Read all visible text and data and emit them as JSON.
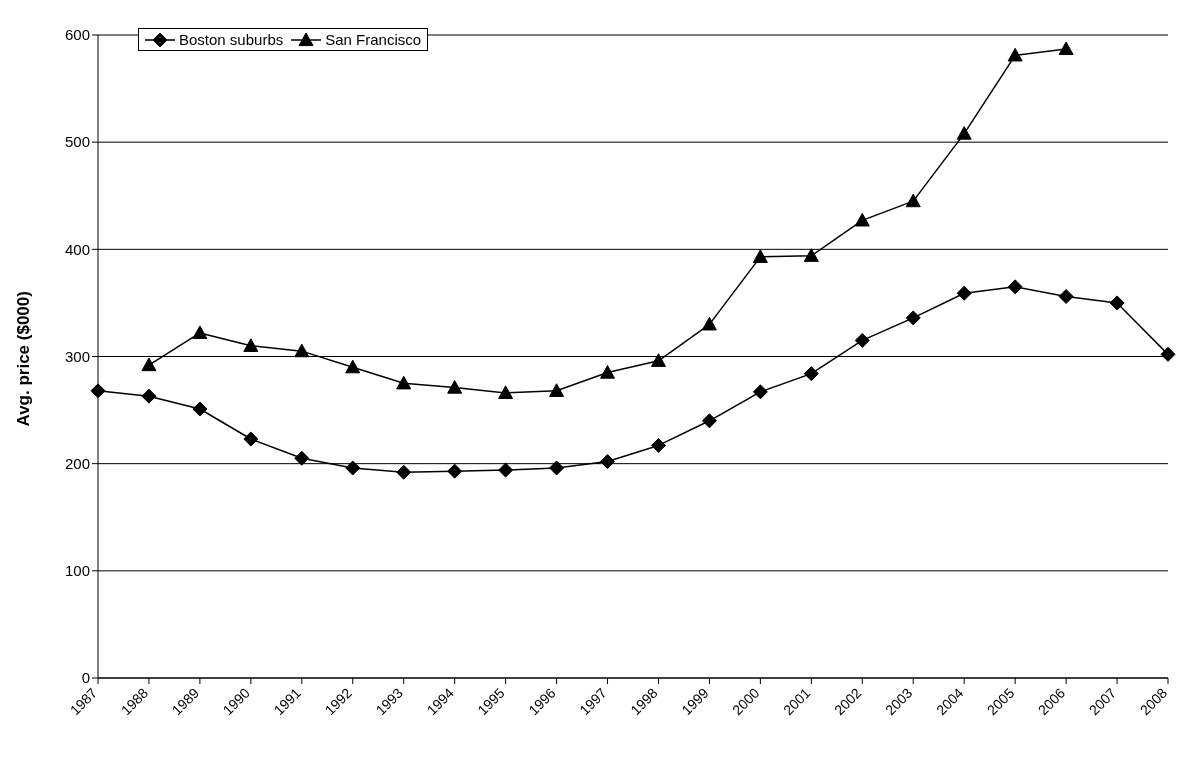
{
  "chart_data": {
    "type": "line",
    "ylabel": "Avg. price ($000)",
    "categories": [
      "1987",
      "1988",
      "1989",
      "1990",
      "1991",
      "1992",
      "1993",
      "1994",
      "1995",
      "1996",
      "1997",
      "1998",
      "1999",
      "2000",
      "2001",
      "2002",
      "2003",
      "2004",
      "2005",
      "2006",
      "2007",
      "2008"
    ],
    "series": [
      {
        "name": "Boston suburbs",
        "color": "#000000",
        "marker": "diamond",
        "values": [
          268,
          263,
          251,
          223,
          205,
          196,
          192,
          193,
          194,
          196,
          202,
          217,
          240,
          267,
          284,
          315,
          336,
          359,
          365,
          356,
          350,
          302
        ]
      },
      {
        "name": "San Francisco",
        "color": "#000000",
        "marker": "triangle",
        "values": [
          null,
          292,
          322,
          310,
          305,
          290,
          275,
          271,
          266,
          268,
          285,
          296,
          330,
          393,
          394,
          427,
          445,
          508,
          581,
          587,
          null,
          null
        ]
      }
    ],
    "ylim": [
      0,
      600
    ],
    "yticks": [
      0,
      100,
      200,
      300,
      400,
      500,
      600
    ],
    "grid": "y",
    "legend": "top left"
  }
}
